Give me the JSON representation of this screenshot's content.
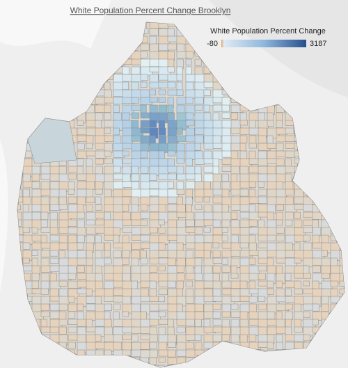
{
  "title": "White Population Percent Change Brooklyn",
  "legend": {
    "title": "White Population Percent Change",
    "min": -80,
    "max": 3187
  }
}
